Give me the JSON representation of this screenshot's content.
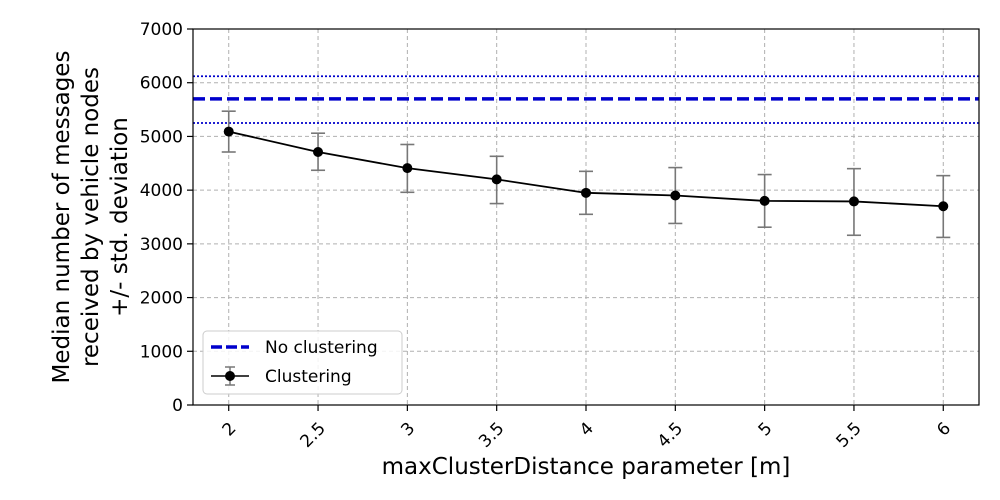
{
  "chart_data": {
    "type": "line",
    "xlabel": "maxClusterDistance parameter [m]",
    "ylabel_lines": [
      "Median number of messages",
      "received by vehicle nodes",
      "+/- std. deviation"
    ],
    "x": [
      2,
      2.5,
      3,
      3.5,
      4,
      4.5,
      5,
      5.5,
      6
    ],
    "x_tick_labels": [
      "2",
      "2.5",
      "3",
      "3.5",
      "4",
      "4.5",
      "5",
      "5.5",
      "6"
    ],
    "xlim": [
      1.8,
      6.2
    ],
    "ylim": [
      0,
      7000
    ],
    "y_ticks": [
      0,
      1000,
      2000,
      3000,
      4000,
      5000,
      6000,
      7000
    ],
    "y_tick_labels": [
      "0",
      "1000",
      "2000",
      "3000",
      "4000",
      "5000",
      "6000",
      "7000"
    ],
    "grid": true,
    "legend_position": "lower-left",
    "series": [
      {
        "name": "No clustering",
        "kind": "horizontal-line",
        "value": 5700,
        "std_lower": 5250,
        "std_upper": 6120,
        "color": "#0000cc"
      },
      {
        "name": "Clustering",
        "kind": "errorbar-line",
        "values": [
          5090,
          4710,
          4410,
          4200,
          3950,
          3900,
          3800,
          3790,
          3700
        ],
        "error_lower": [
          4710,
          4370,
          3960,
          3750,
          3550,
          3380,
          3310,
          3160,
          3120
        ],
        "error_upper": [
          5470,
          5060,
          4850,
          4630,
          4350,
          4420,
          4290,
          4400,
          4270
        ],
        "color": "#000000",
        "error_color": "#777777"
      }
    ]
  }
}
